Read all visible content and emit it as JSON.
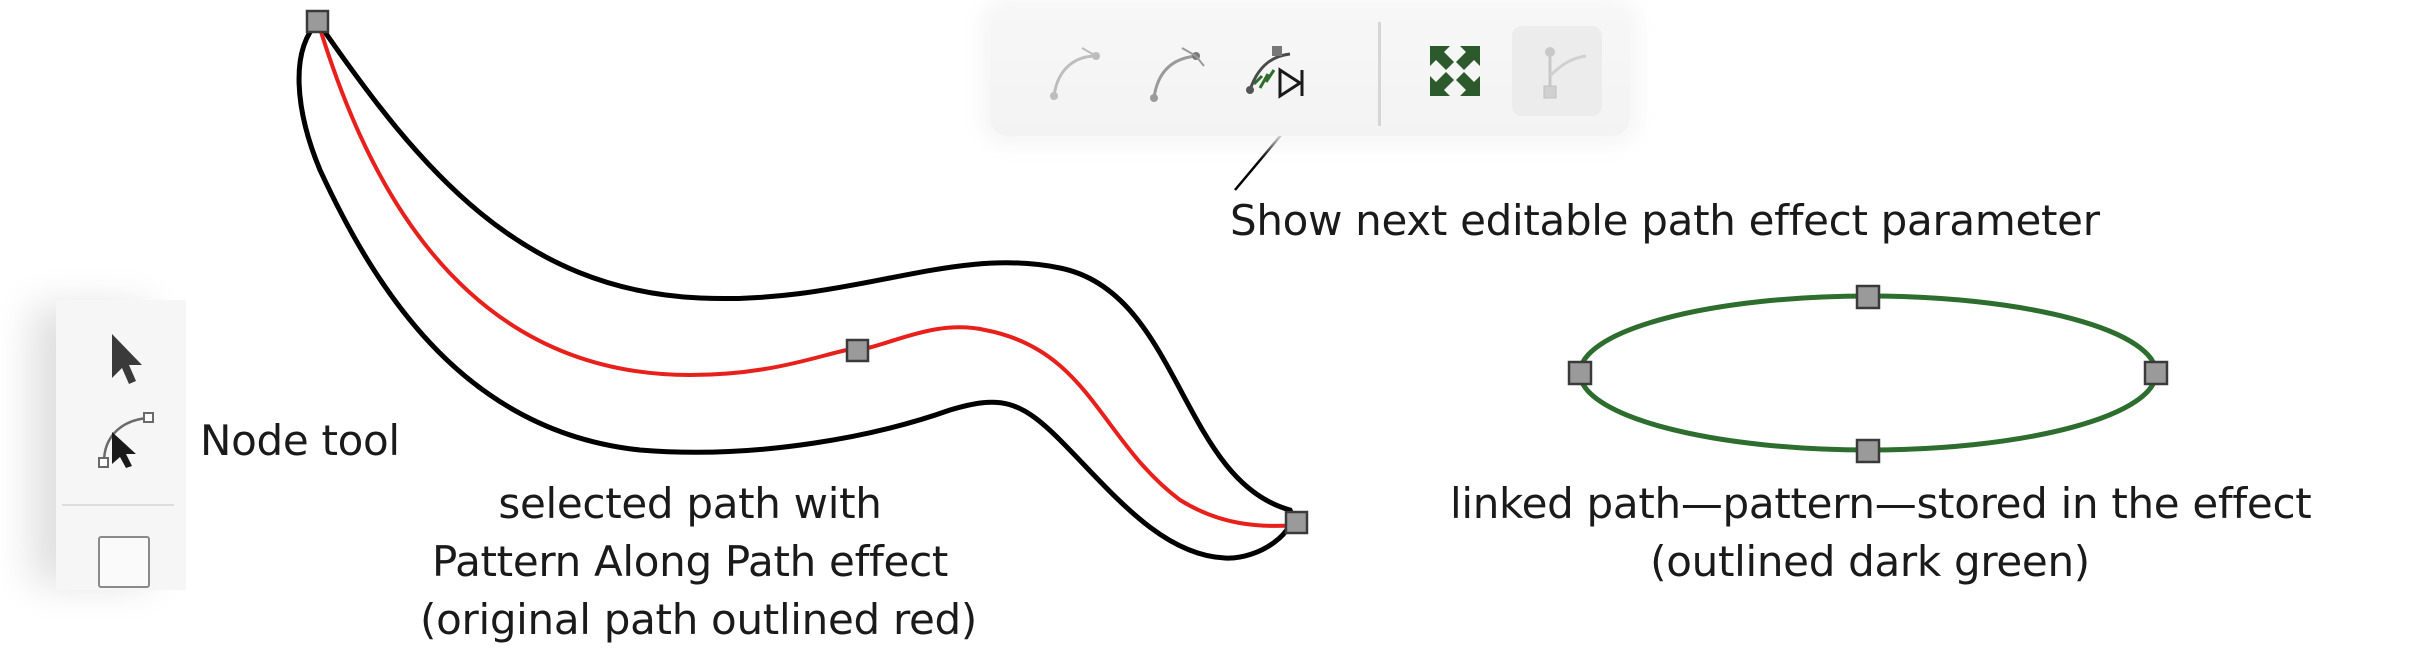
{
  "toolbar": {
    "buttons": [
      {
        "name": "path-effect-button-1",
        "icon": "bezier-curve-icon",
        "disabled": false
      },
      {
        "name": "path-effect-button-2",
        "icon": "bezier-curve-node-icon",
        "disabled": false
      },
      {
        "name": "next-path-effect-parameter-button",
        "icon": "next-lpe-parameter-icon",
        "disabled": false
      },
      {
        "name": "zoom-fit-button",
        "icon": "zoom-fit-icon",
        "disabled": false
      },
      {
        "name": "handle-tool-button",
        "icon": "handle-icon",
        "disabled": true
      }
    ]
  },
  "toolbox": {
    "tools": [
      {
        "name": "selector-tool",
        "icon": "arrow-pointer-icon"
      },
      {
        "name": "node-tool",
        "icon": "node-tool-icon"
      },
      {
        "name": "rectangle-tool",
        "icon": "rectangle-icon"
      }
    ]
  },
  "annotations": {
    "tooltip_callout": "Show next editable path effect parameter",
    "node_tool": "Node tool",
    "selected_path_line1": "selected path with",
    "selected_path_line2": "Pattern Along Path effect",
    "selected_path_line3": "(original path outlined red)",
    "linked_path_line1": "linked path—pattern—stored in the effect",
    "linked_path_line2": "(outlined dark green)"
  },
  "colors": {
    "original_path": "#e8201c",
    "linked_path": "#2d6e2f",
    "outline": "#000000",
    "node_fill": "#9a9a9a",
    "node_stroke": "#3a3a3a"
  }
}
